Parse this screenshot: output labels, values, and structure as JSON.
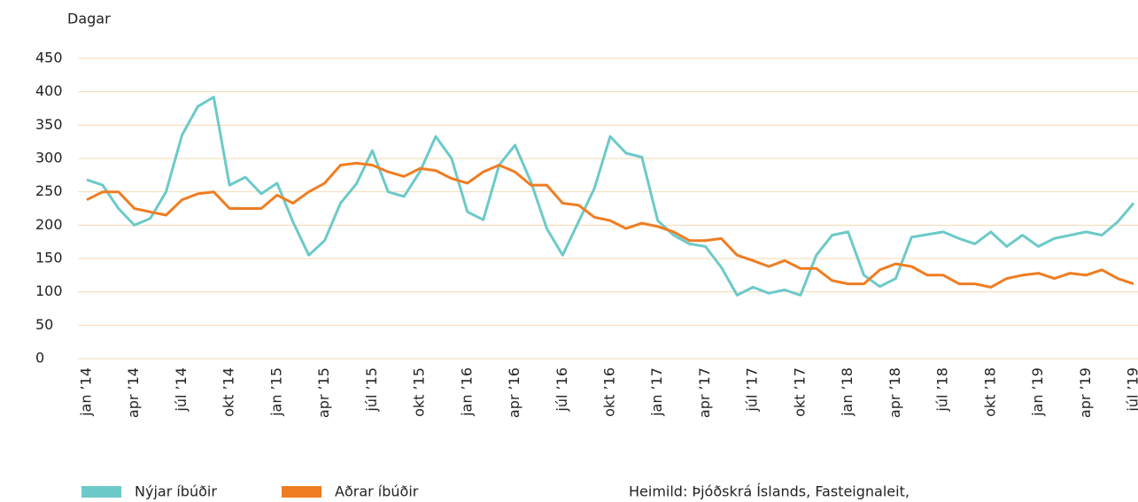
{
  "chart_data": {
    "type": "line",
    "y_label": "Dagar",
    "source": "Heimild: Þjóðskrá Íslands, Fasteignaleit,",
    "categories": [
      "jan ’14",
      null,
      null,
      "apr ’14",
      null,
      null,
      "júl ’14",
      null,
      null,
      "okt ’14",
      null,
      null,
      "jan ’15",
      null,
      null,
      "apr ’15",
      null,
      null,
      "júl ’15",
      null,
      null,
      "okt ’15",
      null,
      null,
      "jan ’16",
      null,
      null,
      "apr ’16",
      null,
      null,
      "júl ’16",
      null,
      null,
      "okt ’16",
      null,
      null,
      "jan ’17",
      null,
      null,
      "apr ’17",
      null,
      null,
      "júl ’17",
      null,
      null,
      "okt ’17",
      null,
      null,
      "jan ’18",
      null,
      null,
      "apr ’18",
      null,
      null,
      "júl ’18",
      null,
      null,
      "okt ’18",
      null,
      null,
      "jan ’19",
      null,
      null,
      "apr ’19",
      null,
      null,
      "júl ’19"
    ],
    "series": [
      {
        "name": "Nýjar íbúðir",
        "color": "#6ccac9",
        "values": [
          268,
          260,
          225,
          200,
          210,
          250,
          335,
          378,
          392,
          260,
          272,
          247,
          263,
          205,
          155,
          177,
          233,
          262,
          312,
          250,
          243,
          280,
          333,
          300,
          220,
          208,
          290,
          320,
          265,
          195,
          155,
          205,
          255,
          333,
          308,
          302,
          207,
          185,
          172,
          168,
          137,
          95,
          107,
          98,
          103,
          95,
          155,
          185,
          190,
          125,
          108,
          120,
          182,
          186,
          190,
          180,
          172,
          190,
          168,
          185,
          168,
          180,
          185,
          190,
          185,
          205,
          233
        ]
      },
      {
        "name": "Aðrar íbúðir",
        "color": "#ef7d22",
        "values": [
          238,
          250,
          250,
          225,
          220,
          215,
          238,
          247,
          250,
          225,
          225,
          225,
          245,
          233,
          250,
          263,
          290,
          293,
          290,
          280,
          273,
          285,
          282,
          270,
          263,
          280,
          290,
          280,
          260,
          260,
          233,
          230,
          212,
          207,
          195,
          203,
          198,
          190,
          177,
          177,
          180,
          155,
          147,
          138,
          147,
          135,
          135,
          117,
          112,
          112,
          133,
          142,
          138,
          125,
          125,
          112,
          112,
          107,
          120,
          125,
          128,
          120,
          128,
          125,
          133,
          120,
          112
        ]
      }
    ],
    "ylim": [
      0,
      450
    ],
    "yticks": [
      0,
      50,
      100,
      150,
      200,
      250,
      300,
      350,
      400,
      450
    ],
    "grid": true
  }
}
